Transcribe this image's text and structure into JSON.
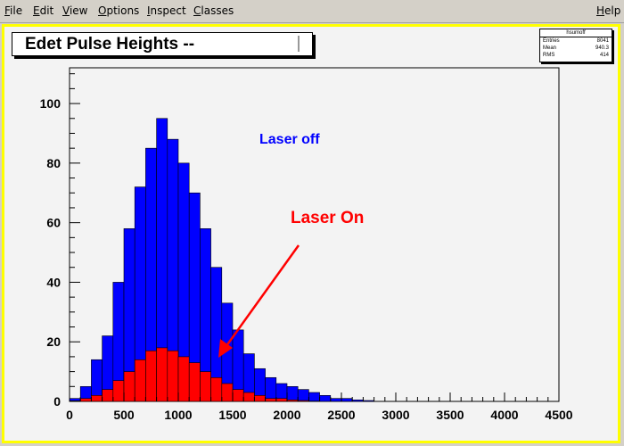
{
  "menu": {
    "items": [
      "File",
      "Edit",
      "View",
      "Options",
      "Inspect",
      "Classes"
    ],
    "help": "Help"
  },
  "plot": {
    "title": "Edet Pulse Heights --",
    "stats": {
      "name": "hsumoff",
      "rows": [
        {
          "key": "Entries",
          "value": "8041"
        },
        {
          "key": "Mean",
          "value": "940.3"
        },
        {
          "key": "RMS",
          "value": "414"
        }
      ]
    },
    "annotations": {
      "laser_off": "Laser off",
      "laser_on": "Laser On"
    },
    "colors": {
      "canvas_border": "#ffff00",
      "laser_off_fill": "#0000ff",
      "laser_on_fill": "#ff0000",
      "arrow": "#ff0000",
      "laser_off_text": "#0000ff",
      "laser_on_text": "#ff0000"
    }
  },
  "chart_data": {
    "type": "bar",
    "title": "Edet Pulse Heights --",
    "x_ticks": [
      0,
      500,
      1000,
      1500,
      2000,
      2500,
      3000,
      3500,
      4000,
      4500
    ],
    "y_ticks": [
      0,
      20,
      40,
      60,
      80,
      100
    ],
    "xlim": [
      0,
      4500
    ],
    "ylim": [
      0,
      112
    ],
    "series": [
      {
        "name": "Laser off",
        "bin_width": 100,
        "x": [
          0,
          100,
          200,
          300,
          400,
          500,
          600,
          700,
          800,
          900,
          1000,
          1100,
          1200,
          1300,
          1400,
          1500,
          1600,
          1700,
          1800,
          1900,
          2000,
          2100,
          2200,
          2300,
          2400,
          2500,
          2600,
          2700
        ],
        "values": [
          1,
          5,
          14,
          22,
          40,
          58,
          72,
          85,
          95,
          88,
          80,
          70,
          58,
          45,
          33,
          24,
          16,
          11,
          8,
          6,
          5,
          4,
          3,
          2,
          1,
          1,
          0.5,
          0.3
        ]
      },
      {
        "name": "Laser On",
        "bin_width": 100,
        "x": [
          0,
          100,
          200,
          300,
          400,
          500,
          600,
          700,
          800,
          900,
          1000,
          1100,
          1200,
          1300,
          1400,
          1500,
          1600,
          1700,
          1800,
          1900,
          2000,
          2100,
          2200
        ],
        "values": [
          0.2,
          1,
          2,
          4,
          7,
          10,
          14,
          17,
          18,
          17,
          15,
          13,
          10,
          8,
          6,
          4,
          3,
          2,
          1,
          1,
          0.5,
          0.3,
          0.1
        ]
      }
    ]
  }
}
